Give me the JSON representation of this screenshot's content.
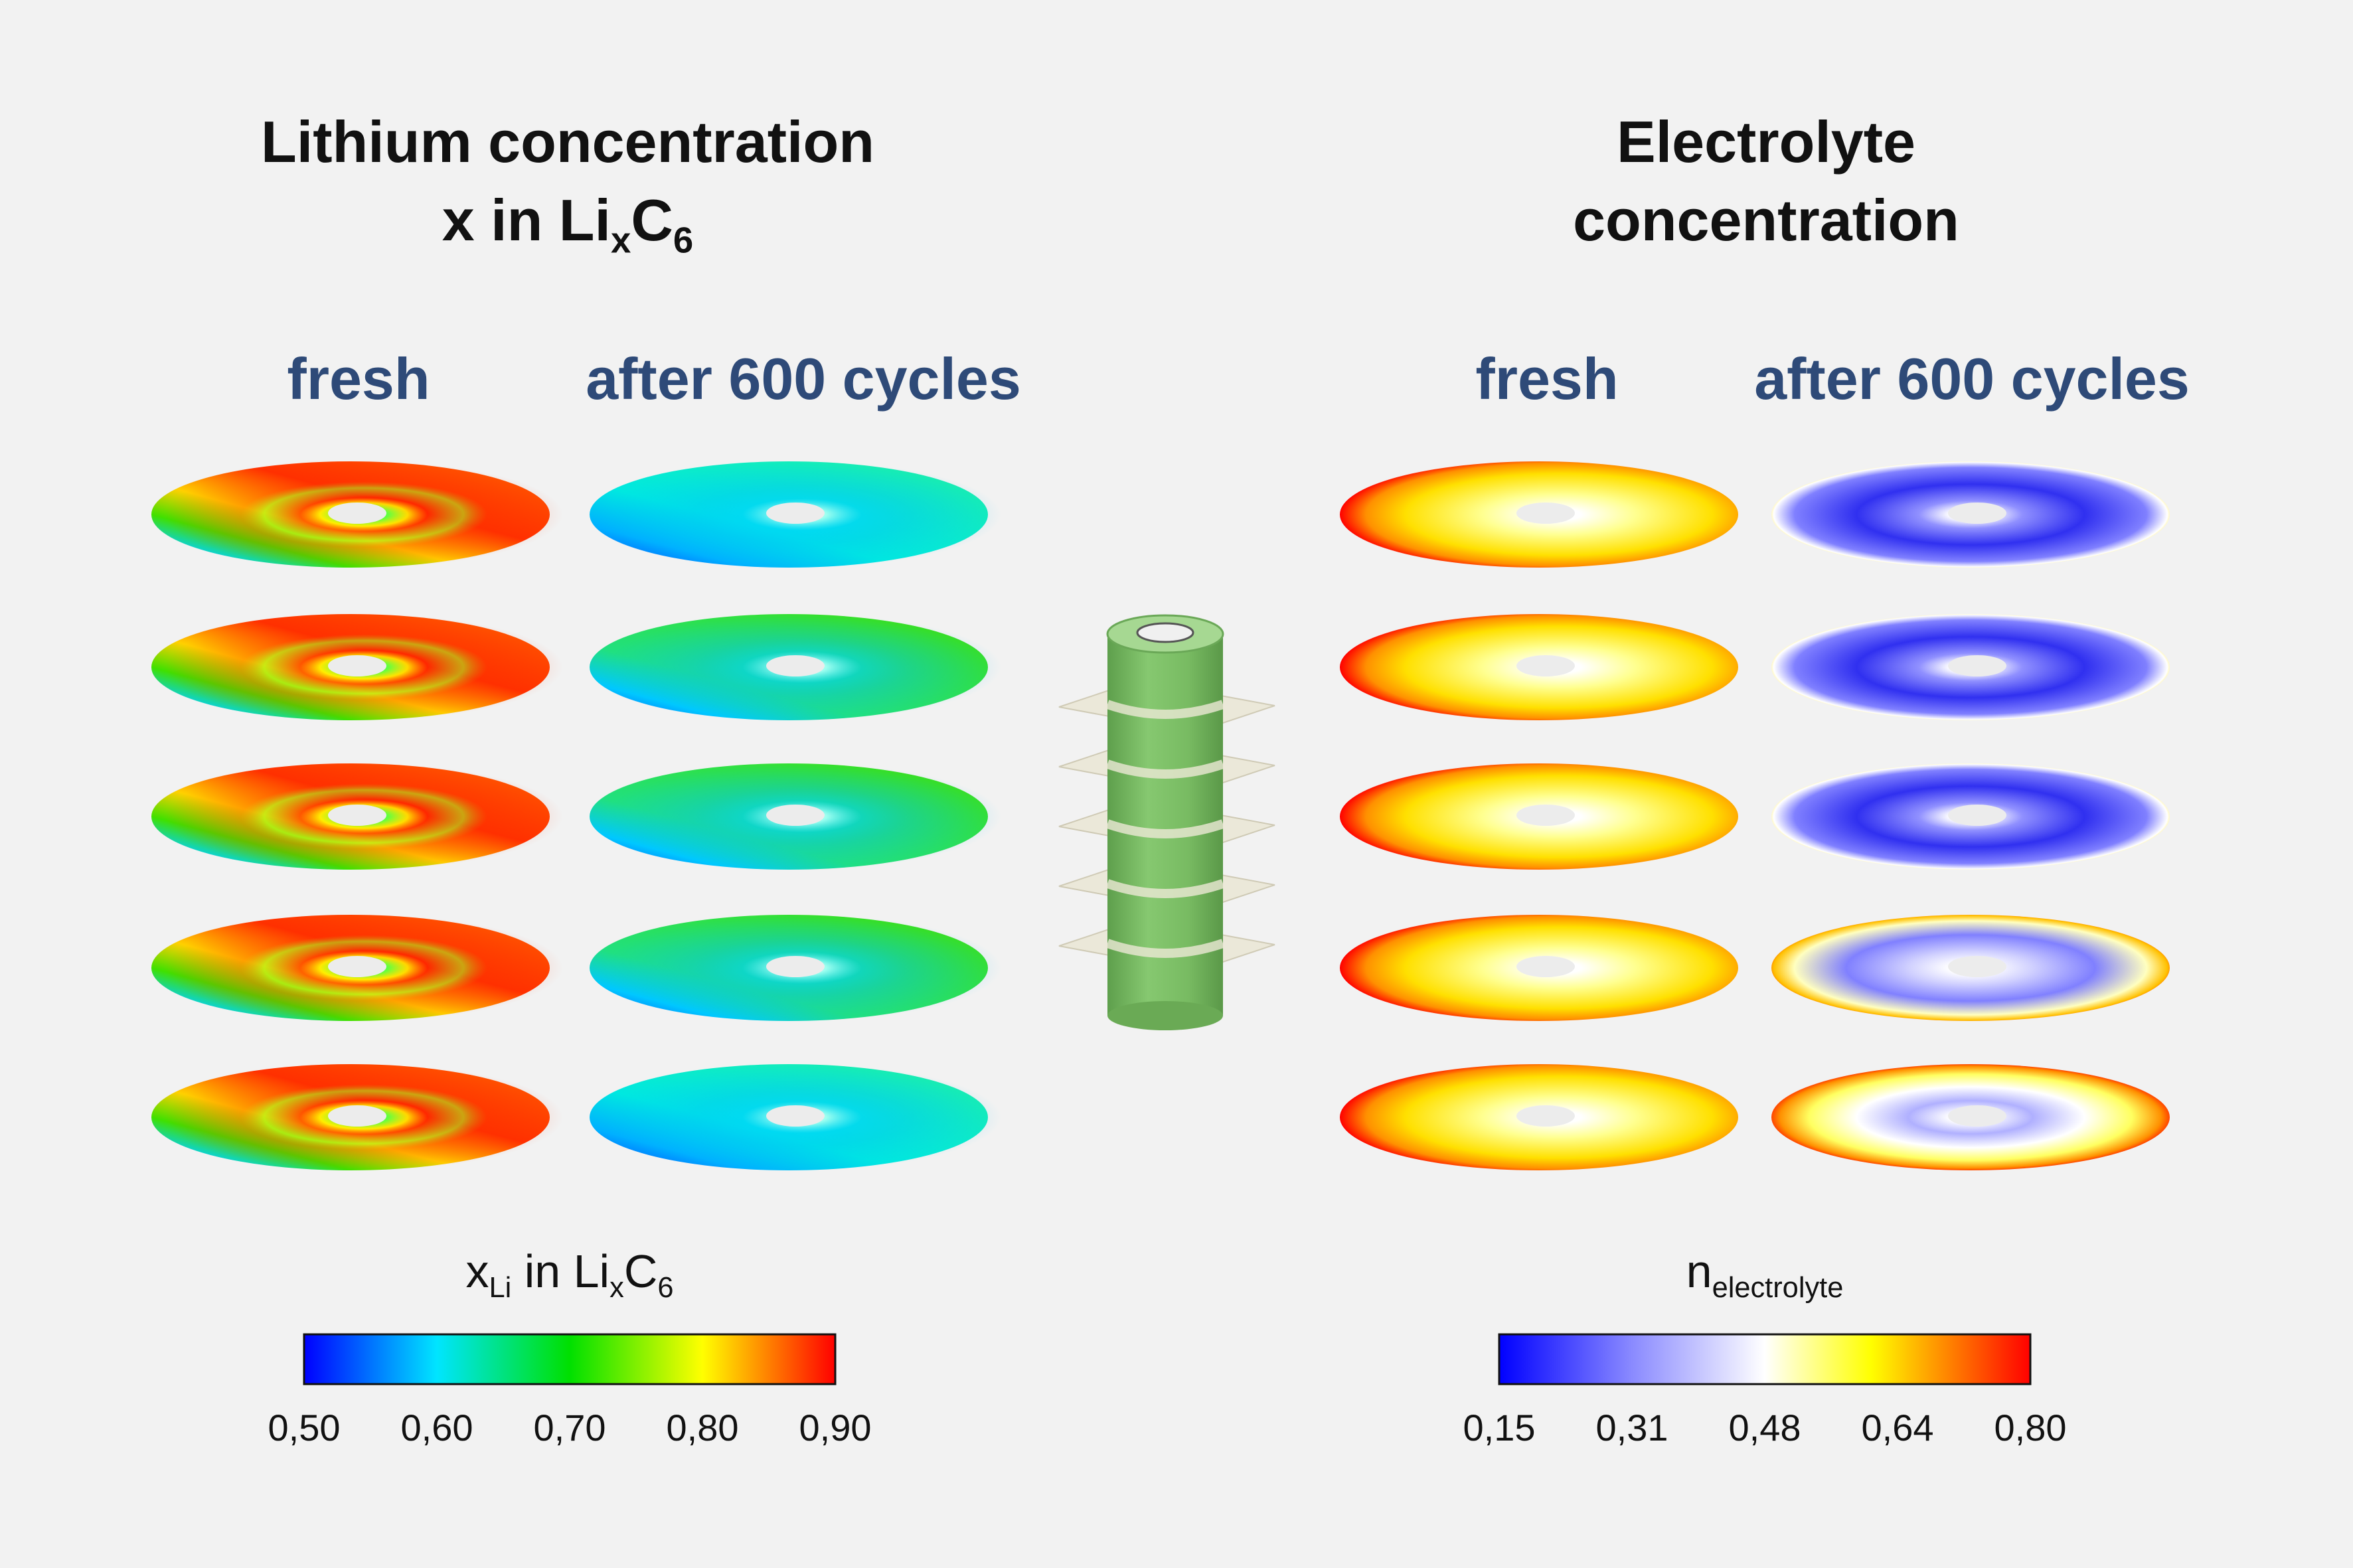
{
  "left_panel": {
    "title_line1": "Lithium concentration",
    "title_line2_prefix": "x in Li",
    "title_line2_sub1": "x",
    "title_line2_mid": "C",
    "title_line2_sub2": "6",
    "col_fresh": "fresh",
    "col_aged": "after 600 cycles",
    "colorbar_label_x": "x",
    "colorbar_label_x_sub": "Li",
    "colorbar_label_mid": " in Li",
    "colorbar_label_sub1": "x",
    "colorbar_label_c": "C",
    "colorbar_label_sub2": "6",
    "colorbar_ticks": [
      "0,50",
      "0,60",
      "0,70",
      "0,80",
      "0,90"
    ],
    "colorbar_colors": [
      "#0000ff",
      "#00e5ff",
      "#00e000",
      "#ffff00",
      "#ff0000"
    ]
  },
  "right_panel": {
    "title_line1": "Electrolyte",
    "title_line2": "concentration",
    "col_fresh": "fresh",
    "col_aged": "after 600 cycles",
    "colorbar_label_n": "n",
    "colorbar_label_sub": "electrolyte",
    "colorbar_ticks": [
      "0,15",
      "0,31",
      "0,48",
      "0,64",
      "0,80"
    ],
    "colorbar_colors": [
      "#0000ff",
      "#8a8aff",
      "#ffffff",
      "#ffff00",
      "#ff8000",
      "#ff0000"
    ]
  },
  "cell_colors": {
    "body": "#7cc066",
    "cap": "#9fd48a",
    "plane": "#e8e4d0"
  }
}
